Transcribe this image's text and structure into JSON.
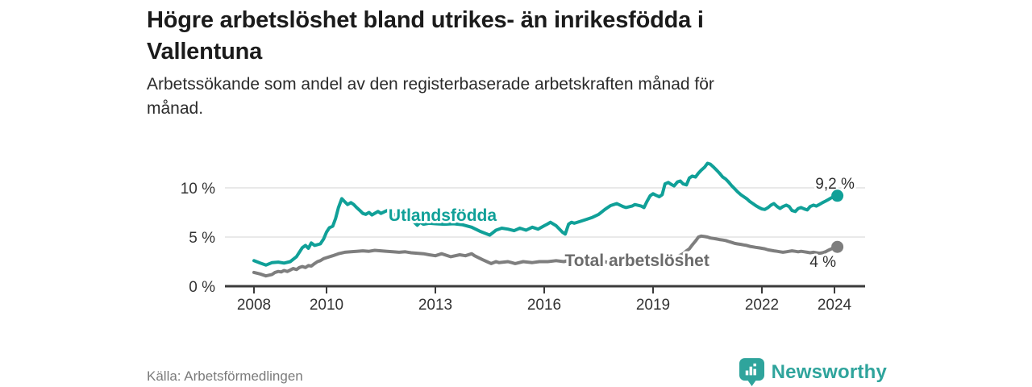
{
  "header": {
    "title": "Högre arbetslöshet bland utrikes- än inrikesfödda i Vallentuna",
    "title_lines": [
      "Högre arbetslöshet bland utrikes- än inrikesfödda i",
      "Vallentuna"
    ],
    "subtitle": "Arbetssökande som andel av den registerbaserade arbetskraften månad för månad.",
    "subtitle_lines": [
      "Arbetssökande som andel av den registerbaserade arbetskraften månad för",
      "månad."
    ]
  },
  "footer": {
    "source": "Källa: Arbetsförmedlingen",
    "brand_name": "Newsworthy",
    "logo_icon": "bar-chart-pin-icon"
  },
  "colors": {
    "background": "#ffffff",
    "accent_teal": "#10a098",
    "series_gray": "#7e7e7e",
    "gray_label": "#6b6b6b",
    "axis": "#3b3b3b",
    "gridline": "#dcdcdc",
    "tick_text": "#333333",
    "value_text": "#2e2e2e",
    "logo_teal": "#2fa49c"
  },
  "chart_data": {
    "type": "line",
    "title": "Högre arbetslöshet bland utrikes- än inrikesfödda i Vallentuna",
    "subtitle": "Arbetssökande som andel av den registerbaserade arbetskraften månad för månad.",
    "source": "Källa: Arbetsförmedlingen",
    "xlabel": "",
    "ylabel": "",
    "x_tick_years": [
      2008,
      2010,
      2013,
      2016,
      2019,
      2022,
      2024
    ],
    "x_tick_labels": [
      "2008",
      "2010",
      "2013",
      "2016",
      "2019",
      "2022",
      "2024"
    ],
    "y_tick_values": [
      0,
      5,
      10
    ],
    "y_tick_labels": [
      "0 %",
      "5 %",
      "10 %"
    ],
    "xlim": [
      2008,
      2024.1
    ],
    "ylim": [
      0,
      13.4
    ],
    "grid": "horizontal",
    "legend": "inline-labels",
    "series": [
      {
        "name": "Utlandsfödda",
        "id": "utlandsfodda",
        "color": "#10a098",
        "label_color": "#10a098",
        "label_at": {
          "year": 2013.2,
          "value": 7.3
        },
        "end_label": "9,2 %",
        "end_value": 9.2,
        "end_label_offset": {
          "dx": -3,
          "dy": -9
        },
        "points": [
          [
            2008.0,
            2.6
          ],
          [
            2008.17,
            2.35
          ],
          [
            2008.33,
            2.15
          ],
          [
            2008.5,
            2.4
          ],
          [
            2008.67,
            2.45
          ],
          [
            2008.83,
            2.35
          ],
          [
            2009.0,
            2.5
          ],
          [
            2009.17,
            3.0
          ],
          [
            2009.33,
            3.9
          ],
          [
            2009.42,
            4.15
          ],
          [
            2009.5,
            3.85
          ],
          [
            2009.58,
            4.4
          ],
          [
            2009.67,
            4.15
          ],
          [
            2009.83,
            4.3
          ],
          [
            2009.92,
            4.8
          ],
          [
            2010.0,
            5.5
          ],
          [
            2010.08,
            5.95
          ],
          [
            2010.17,
            6.1
          ],
          [
            2010.25,
            6.9
          ],
          [
            2010.33,
            8.0
          ],
          [
            2010.42,
            8.9
          ],
          [
            2010.5,
            8.6
          ],
          [
            2010.58,
            8.3
          ],
          [
            2010.67,
            8.5
          ],
          [
            2010.75,
            8.3
          ],
          [
            2010.83,
            8.0
          ],
          [
            2010.92,
            7.7
          ],
          [
            2011.0,
            7.4
          ],
          [
            2011.08,
            7.3
          ],
          [
            2011.17,
            7.5
          ],
          [
            2011.25,
            7.25
          ],
          [
            2011.42,
            7.6
          ],
          [
            2011.5,
            7.4
          ],
          [
            2011.67,
            7.7
          ],
          [
            2011.75,
            7.5
          ],
          [
            2011.92,
            7.2
          ],
          [
            2012.0,
            7.1
          ],
          [
            2012.08,
            6.9
          ],
          [
            2012.17,
            7.0
          ],
          [
            2012.33,
            6.7
          ],
          [
            2012.42,
            6.5
          ],
          [
            2012.5,
            6.2
          ],
          [
            2012.58,
            6.5
          ],
          [
            2012.67,
            6.3
          ],
          [
            2012.83,
            6.4
          ],
          [
            2013.0,
            6.35
          ],
          [
            2013.25,
            6.3
          ],
          [
            2013.5,
            6.35
          ],
          [
            2013.75,
            6.25
          ],
          [
            2014.0,
            6.0
          ],
          [
            2014.25,
            5.55
          ],
          [
            2014.5,
            5.2
          ],
          [
            2014.67,
            5.7
          ],
          [
            2014.83,
            5.9
          ],
          [
            2015.0,
            5.8
          ],
          [
            2015.17,
            5.65
          ],
          [
            2015.33,
            5.9
          ],
          [
            2015.5,
            5.7
          ],
          [
            2015.67,
            6.0
          ],
          [
            2015.83,
            5.8
          ],
          [
            2016.0,
            6.15
          ],
          [
            2016.08,
            6.3
          ],
          [
            2016.17,
            6.5
          ],
          [
            2016.33,
            6.15
          ],
          [
            2016.5,
            5.5
          ],
          [
            2016.58,
            5.3
          ],
          [
            2016.67,
            6.3
          ],
          [
            2016.75,
            6.5
          ],
          [
            2016.83,
            6.4
          ],
          [
            2017.0,
            6.6
          ],
          [
            2017.17,
            6.8
          ],
          [
            2017.33,
            7.0
          ],
          [
            2017.5,
            7.3
          ],
          [
            2017.67,
            7.8
          ],
          [
            2017.83,
            8.2
          ],
          [
            2018.0,
            8.4
          ],
          [
            2018.17,
            8.1
          ],
          [
            2018.25,
            8.0
          ],
          [
            2018.42,
            8.15
          ],
          [
            2018.5,
            8.3
          ],
          [
            2018.67,
            8.15
          ],
          [
            2018.75,
            8.0
          ],
          [
            2018.83,
            8.6
          ],
          [
            2018.92,
            9.2
          ],
          [
            2019.0,
            9.4
          ],
          [
            2019.08,
            9.25
          ],
          [
            2019.17,
            9.1
          ],
          [
            2019.25,
            9.3
          ],
          [
            2019.33,
            10.4
          ],
          [
            2019.42,
            10.55
          ],
          [
            2019.5,
            10.35
          ],
          [
            2019.58,
            10.2
          ],
          [
            2019.67,
            10.6
          ],
          [
            2019.75,
            10.7
          ],
          [
            2019.83,
            10.4
          ],
          [
            2019.92,
            10.3
          ],
          [
            2020.0,
            11.0
          ],
          [
            2020.08,
            11.2
          ],
          [
            2020.17,
            11.1
          ],
          [
            2020.25,
            11.5
          ],
          [
            2020.33,
            11.8
          ],
          [
            2020.42,
            12.1
          ],
          [
            2020.5,
            12.5
          ],
          [
            2020.58,
            12.4
          ],
          [
            2020.67,
            12.1
          ],
          [
            2020.75,
            11.8
          ],
          [
            2020.83,
            11.5
          ],
          [
            2020.92,
            11.1
          ],
          [
            2021.0,
            10.9
          ],
          [
            2021.08,
            10.6
          ],
          [
            2021.17,
            10.2
          ],
          [
            2021.25,
            9.9
          ],
          [
            2021.33,
            9.6
          ],
          [
            2021.42,
            9.3
          ],
          [
            2021.5,
            9.1
          ],
          [
            2021.58,
            8.9
          ],
          [
            2021.67,
            8.6
          ],
          [
            2021.75,
            8.4
          ],
          [
            2021.83,
            8.2
          ],
          [
            2021.92,
            8.0
          ],
          [
            2022.0,
            7.85
          ],
          [
            2022.08,
            7.8
          ],
          [
            2022.17,
            8.0
          ],
          [
            2022.25,
            8.25
          ],
          [
            2022.33,
            8.4
          ],
          [
            2022.42,
            8.1
          ],
          [
            2022.5,
            7.9
          ],
          [
            2022.58,
            8.1
          ],
          [
            2022.67,
            8.25
          ],
          [
            2022.75,
            8.1
          ],
          [
            2022.83,
            7.7
          ],
          [
            2022.92,
            7.6
          ],
          [
            2023.0,
            7.9
          ],
          [
            2023.08,
            8.0
          ],
          [
            2023.17,
            7.85
          ],
          [
            2023.25,
            7.75
          ],
          [
            2023.33,
            8.1
          ],
          [
            2023.42,
            8.25
          ],
          [
            2023.5,
            8.15
          ],
          [
            2023.58,
            8.3
          ],
          [
            2023.67,
            8.5
          ],
          [
            2023.75,
            8.65
          ],
          [
            2023.83,
            8.8
          ],
          [
            2023.92,
            9.0
          ],
          [
            2024.0,
            9.1
          ],
          [
            2024.08,
            9.2
          ]
        ]
      },
      {
        "name": "Total arbetslöshet",
        "id": "total-arbetsloshet",
        "color": "#7e7e7e",
        "label_color": "#6b6b6b",
        "label_at": {
          "year": 2018.56,
          "value": 2.7
        },
        "end_label": "4 %",
        "end_value": 4.0,
        "end_label_offset": {
          "dx": -18,
          "dy": 25
        },
        "points": [
          [
            2008.0,
            1.4
          ],
          [
            2008.17,
            1.25
          ],
          [
            2008.33,
            1.05
          ],
          [
            2008.5,
            1.2
          ],
          [
            2008.58,
            1.4
          ],
          [
            2008.67,
            1.5
          ],
          [
            2008.75,
            1.45
          ],
          [
            2008.83,
            1.6
          ],
          [
            2008.92,
            1.5
          ],
          [
            2009.0,
            1.65
          ],
          [
            2009.08,
            1.8
          ],
          [
            2009.17,
            1.7
          ],
          [
            2009.25,
            1.9
          ],
          [
            2009.33,
            2.0
          ],
          [
            2009.42,
            1.9
          ],
          [
            2009.5,
            2.1
          ],
          [
            2009.58,
            2.05
          ],
          [
            2009.67,
            2.3
          ],
          [
            2009.75,
            2.5
          ],
          [
            2009.83,
            2.6
          ],
          [
            2009.92,
            2.8
          ],
          [
            2010.0,
            2.9
          ],
          [
            2010.17,
            3.1
          ],
          [
            2010.33,
            3.3
          ],
          [
            2010.5,
            3.45
          ],
          [
            2010.67,
            3.5
          ],
          [
            2010.83,
            3.55
          ],
          [
            2011.0,
            3.6
          ],
          [
            2011.17,
            3.55
          ],
          [
            2011.33,
            3.65
          ],
          [
            2011.5,
            3.6
          ],
          [
            2011.67,
            3.55
          ],
          [
            2011.83,
            3.5
          ],
          [
            2012.0,
            3.45
          ],
          [
            2012.17,
            3.5
          ],
          [
            2012.33,
            3.4
          ],
          [
            2012.5,
            3.35
          ],
          [
            2012.67,
            3.3
          ],
          [
            2012.83,
            3.2
          ],
          [
            2013.0,
            3.1
          ],
          [
            2013.17,
            3.3
          ],
          [
            2013.42,
            3.0
          ],
          [
            2013.67,
            3.2
          ],
          [
            2013.83,
            3.1
          ],
          [
            2014.0,
            3.3
          ],
          [
            2014.08,
            3.1
          ],
          [
            2014.3,
            2.7
          ],
          [
            2014.42,
            2.5
          ],
          [
            2014.54,
            2.3
          ],
          [
            2014.67,
            2.5
          ],
          [
            2014.75,
            2.4
          ],
          [
            2015.0,
            2.5
          ],
          [
            2015.2,
            2.3
          ],
          [
            2015.42,
            2.5
          ],
          [
            2015.67,
            2.4
          ],
          [
            2015.87,
            2.5
          ],
          [
            2016.1,
            2.5
          ],
          [
            2016.33,
            2.6
          ],
          [
            2016.54,
            2.5
          ],
          [
            2016.75,
            2.7
          ],
          [
            2016.87,
            2.6
          ],
          [
            2017.0,
            2.8
          ],
          [
            2017.1,
            2.6
          ],
          [
            2017.2,
            2.8
          ],
          [
            2017.36,
            2.6
          ],
          [
            2017.5,
            2.8
          ],
          [
            2017.67,
            2.5
          ],
          [
            2017.83,
            2.3
          ],
          [
            2018.0,
            2.45
          ],
          [
            2018.25,
            2.5
          ],
          [
            2018.5,
            2.4
          ],
          [
            2018.75,
            2.5
          ],
          [
            2019.0,
            2.6
          ],
          [
            2019.25,
            2.7
          ],
          [
            2019.5,
            2.8
          ],
          [
            2019.67,
            3.0
          ],
          [
            2019.83,
            3.3
          ],
          [
            2019.92,
            3.6
          ],
          [
            2020.0,
            3.8
          ],
          [
            2020.08,
            4.2
          ],
          [
            2020.17,
            4.6
          ],
          [
            2020.25,
            5.0
          ],
          [
            2020.33,
            5.1
          ],
          [
            2020.42,
            5.05
          ],
          [
            2020.5,
            5.0
          ],
          [
            2020.58,
            4.9
          ],
          [
            2020.67,
            4.85
          ],
          [
            2020.75,
            4.8
          ],
          [
            2020.83,
            4.75
          ],
          [
            2020.92,
            4.7
          ],
          [
            2021.0,
            4.65
          ],
          [
            2021.08,
            4.55
          ],
          [
            2021.17,
            4.45
          ],
          [
            2021.25,
            4.35
          ],
          [
            2021.33,
            4.3
          ],
          [
            2021.42,
            4.25
          ],
          [
            2021.5,
            4.2
          ],
          [
            2021.58,
            4.15
          ],
          [
            2021.67,
            4.05
          ],
          [
            2021.75,
            4.0
          ],
          [
            2021.83,
            3.95
          ],
          [
            2021.92,
            3.9
          ],
          [
            2022.0,
            3.85
          ],
          [
            2022.08,
            3.8
          ],
          [
            2022.17,
            3.7
          ],
          [
            2022.25,
            3.65
          ],
          [
            2022.33,
            3.6
          ],
          [
            2022.42,
            3.55
          ],
          [
            2022.5,
            3.5
          ],
          [
            2022.58,
            3.45
          ],
          [
            2022.67,
            3.5
          ],
          [
            2022.75,
            3.55
          ],
          [
            2022.83,
            3.6
          ],
          [
            2022.92,
            3.55
          ],
          [
            2023.0,
            3.5
          ],
          [
            2023.08,
            3.55
          ],
          [
            2023.17,
            3.5
          ],
          [
            2023.25,
            3.45
          ],
          [
            2023.33,
            3.4
          ],
          [
            2023.42,
            3.45
          ],
          [
            2023.5,
            3.4
          ],
          [
            2023.58,
            3.35
          ],
          [
            2023.67,
            3.4
          ],
          [
            2023.75,
            3.5
          ],
          [
            2023.83,
            3.65
          ],
          [
            2023.92,
            3.8
          ],
          [
            2024.0,
            3.95
          ],
          [
            2024.08,
            4.0
          ]
        ]
      }
    ]
  }
}
